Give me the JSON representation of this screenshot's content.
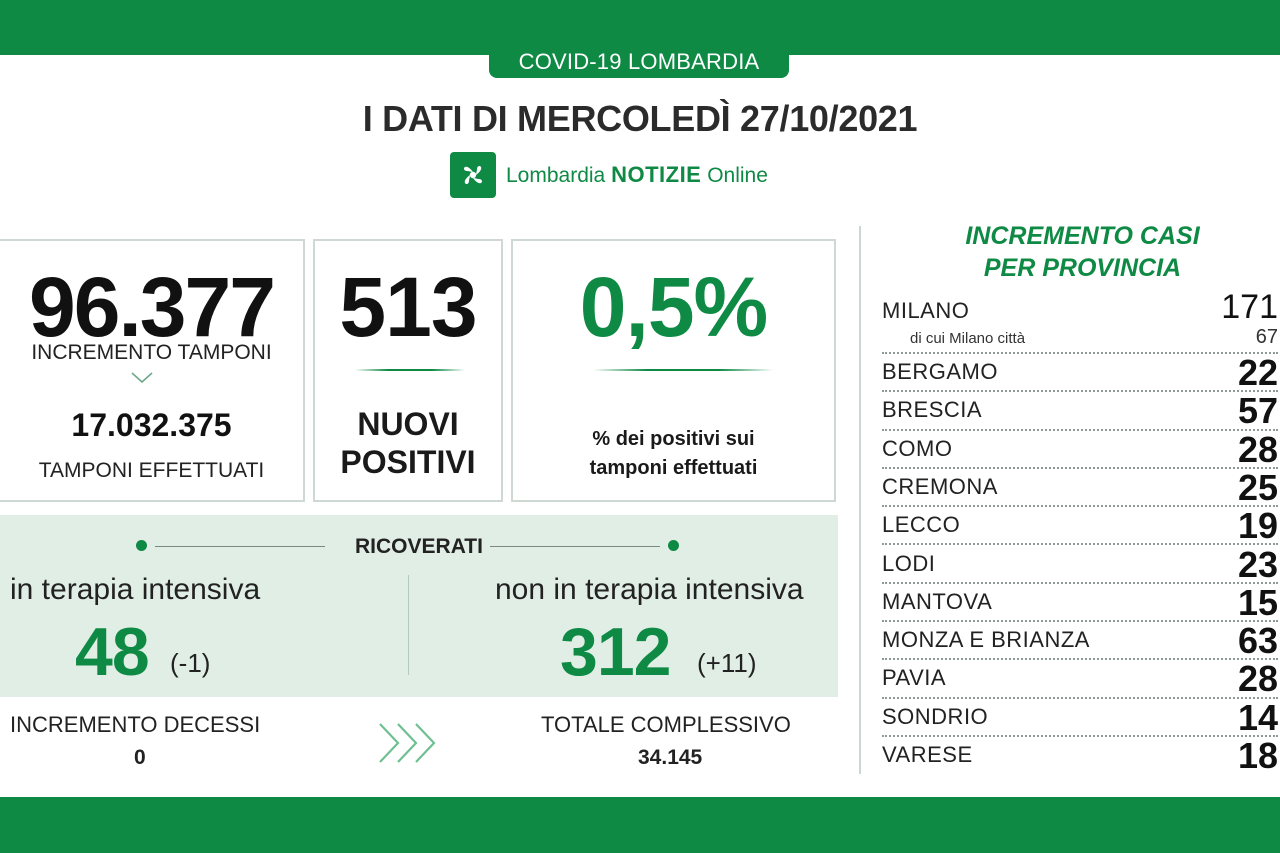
{
  "header": {
    "region_badge": "COVID-19 LOMBARDIA",
    "title": "I DATI DI MERCOLEDÌ 27/10/2021",
    "brand_prefix": "Lombardia",
    "brand_bold": "NOTIZIE",
    "brand_suffix": "Online",
    "logo_icon": "lombardia-rose-icon"
  },
  "tamponi": {
    "increment": "96.377",
    "increment_label": "INCREMENTO TAMPONI",
    "total": "17.032.375",
    "total_label": "TAMPONI EFFETTUATI"
  },
  "nuovi_positivi": {
    "value": "513",
    "label_line1": "NUOVI",
    "label_line2": "POSITIVI"
  },
  "percentuale": {
    "value": "0,5%",
    "label_line1": "% dei positivi sui",
    "label_line2": "tamponi effettuati"
  },
  "ricoverati": {
    "title": "RICOVERATI",
    "intensiva_label": "in terapia intensiva",
    "intensiva_value": "48",
    "intensiva_delta": "(-1)",
    "non_intensiva_label": "non in terapia intensiva",
    "non_intensiva_value": "312",
    "non_intensiva_delta": "(+11)"
  },
  "decessi": {
    "increment_label": "INCREMENTO DECESSI",
    "increment_value": "0",
    "total_label": "TOTALE COMPLESSIVO",
    "total_value": "34.145"
  },
  "province": {
    "title_line1": "INCREMENTO CASI",
    "title_line2": "PER PROVINCIA",
    "milano": {
      "name": "MILANO",
      "value": "171",
      "sub_name": "di cui Milano città",
      "sub_value": "67"
    },
    "items": [
      {
        "name": "BERGAMO",
        "value": "22"
      },
      {
        "name": "BRESCIA",
        "value": "57"
      },
      {
        "name": "COMO",
        "value": "28"
      },
      {
        "name": "CREMONA",
        "value": "25"
      },
      {
        "name": "LECCO",
        "value": "19"
      },
      {
        "name": "LODI",
        "value": "23"
      },
      {
        "name": "MANTOVA",
        "value": "15"
      },
      {
        "name": "MONZA E BRIANZA",
        "value": "63"
      },
      {
        "name": "PAVIA",
        "value": "28"
      },
      {
        "name": "SONDRIO",
        "value": "14"
      },
      {
        "name": "VARESE",
        "value": "18"
      }
    ]
  },
  "colors": {
    "brand_green": "#0e8a45",
    "panel_bg": "#e1eee6"
  }
}
